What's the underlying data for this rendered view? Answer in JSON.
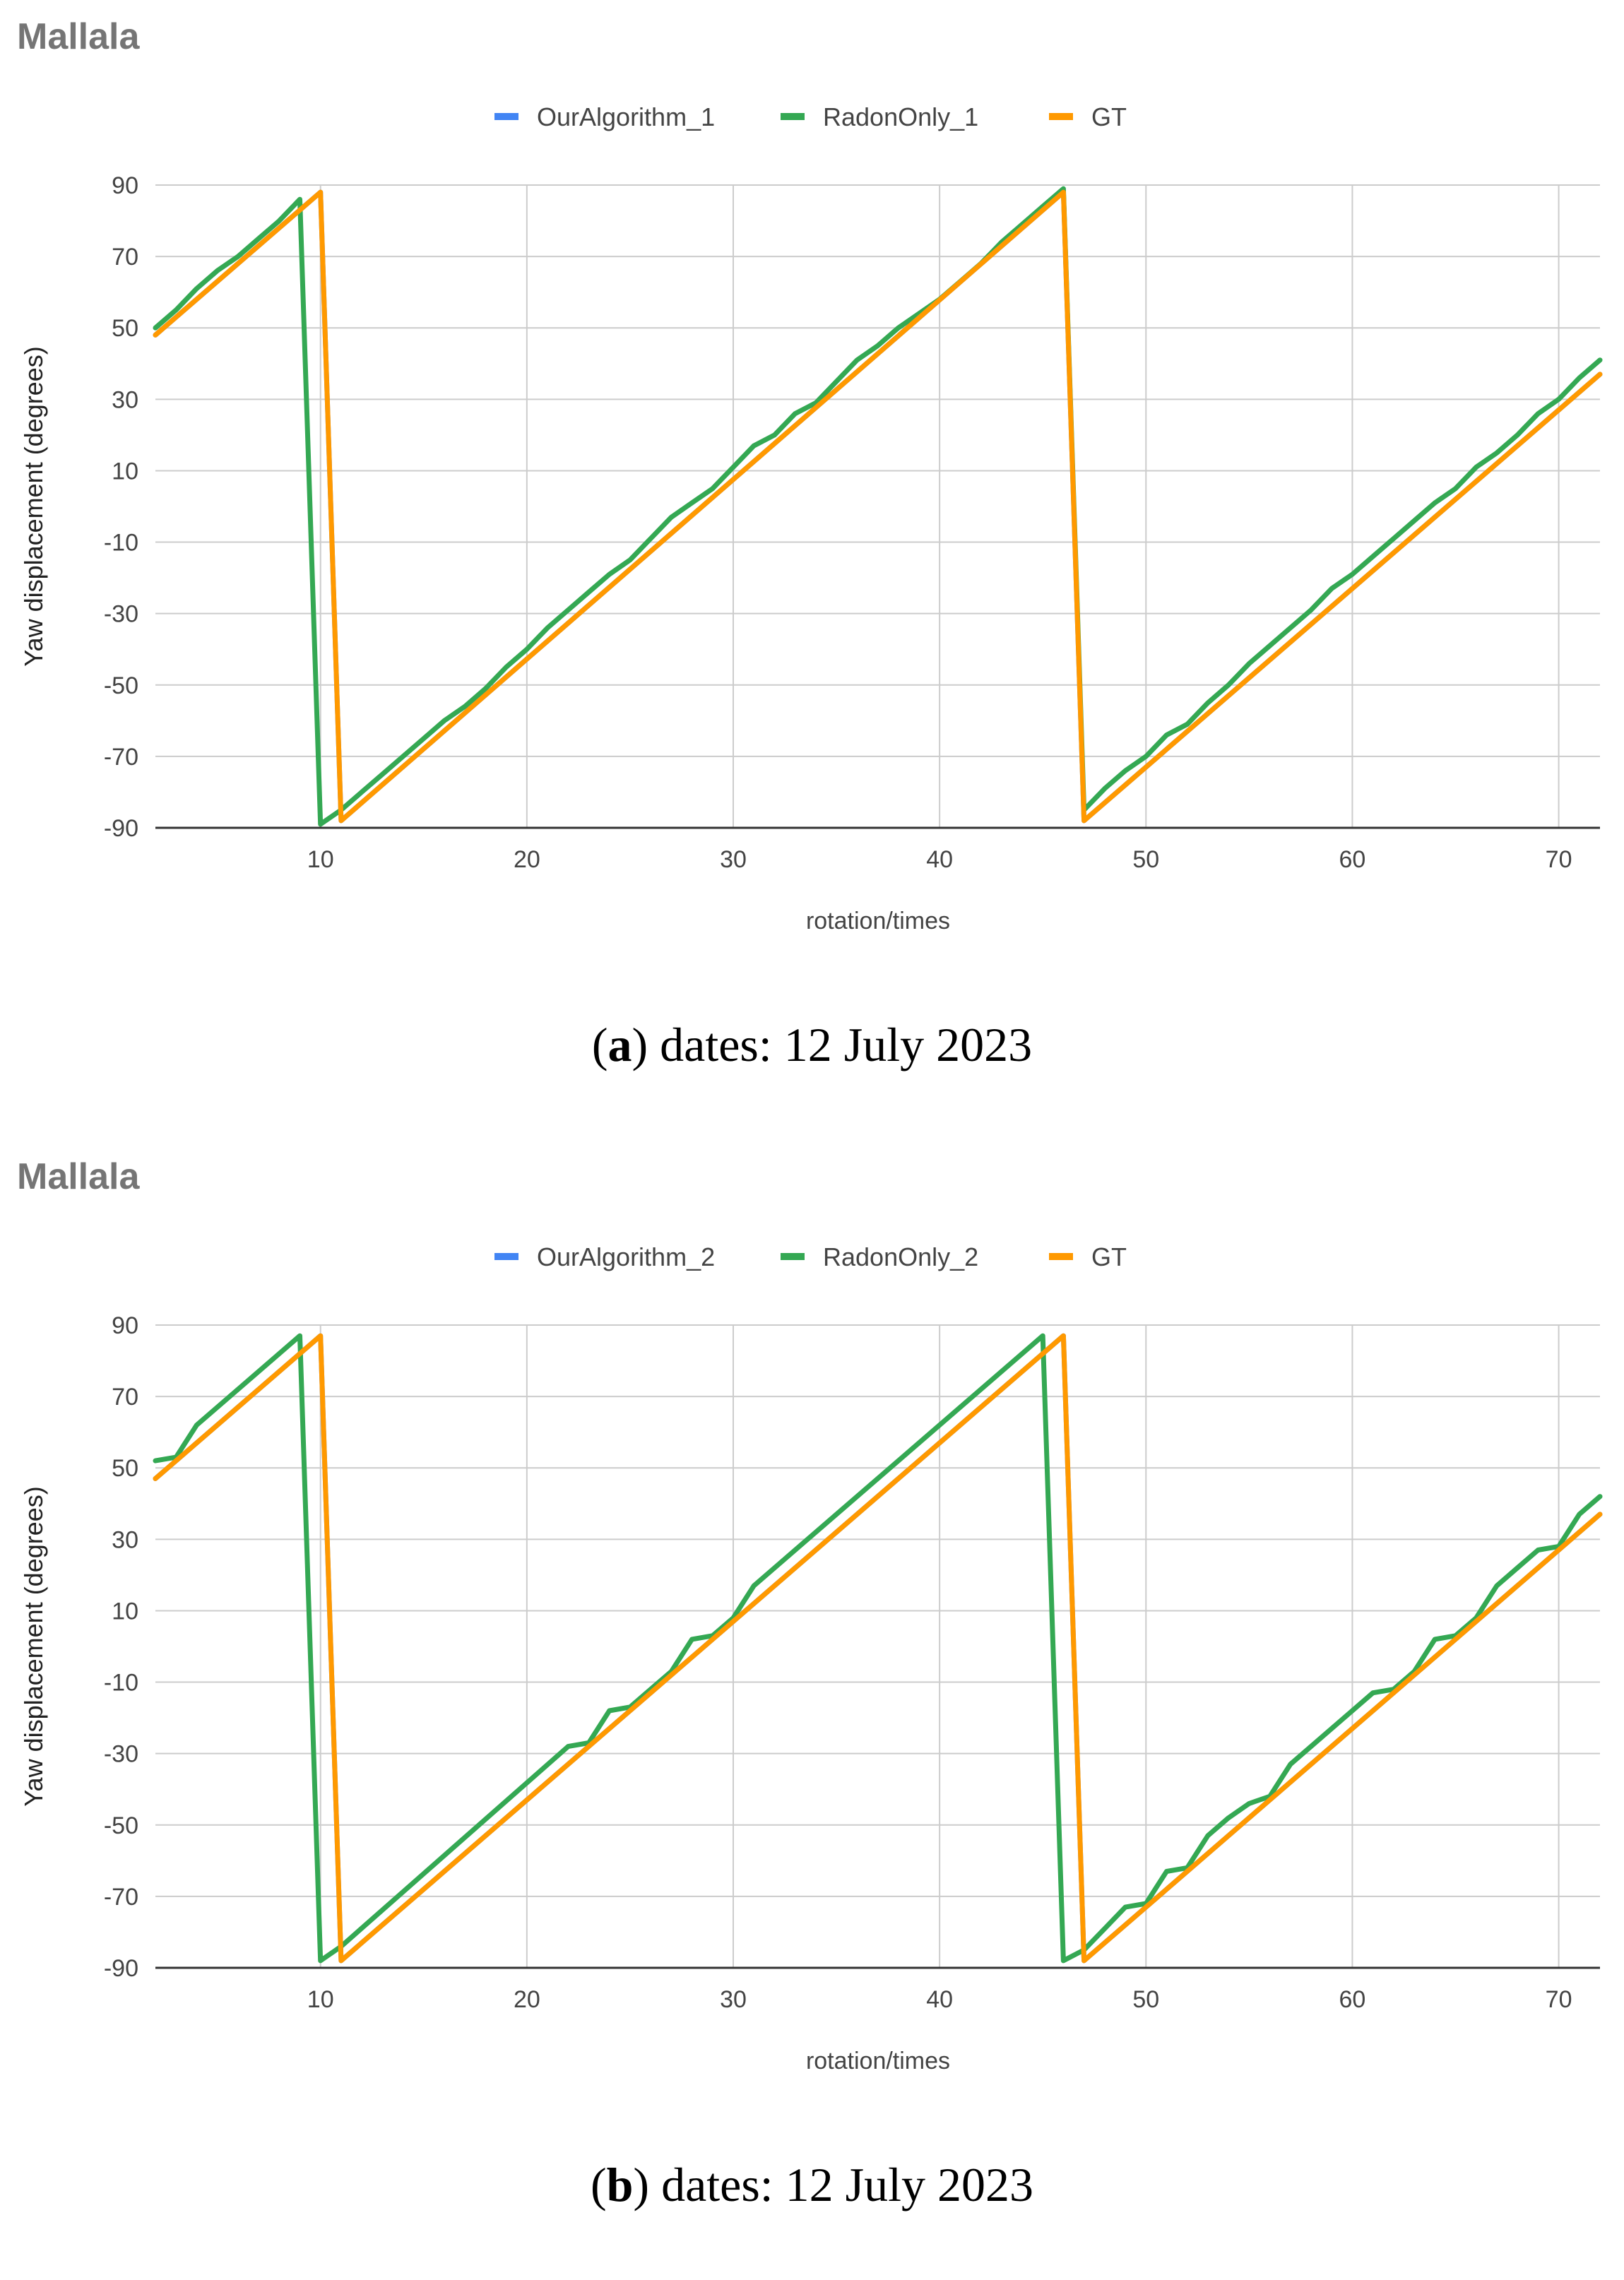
{
  "colors": {
    "OurAlgorithm": "#4285f4",
    "RadonOnly": "#34a853",
    "GT": "#ff9900",
    "grid": "#cccccc",
    "axis": "#333333"
  },
  "chart_data": [
    {
      "type": "line",
      "title": "Mallala",
      "caption_label": "a",
      "caption_text": ") dates: 12 July 2023",
      "caption_open": "(",
      "xlabel": "rotation/times",
      "ylabel": "Yaw displacement (degrees)",
      "xlim": [
        2,
        72
      ],
      "ylim": [
        -90,
        90
      ],
      "xticks": [
        10,
        20,
        30,
        40,
        50,
        60,
        70
      ],
      "yticks": [
        90,
        70,
        50,
        30,
        10,
        -10,
        -30,
        -50,
        -70,
        -90
      ],
      "grid": true,
      "legend_position": "top-center",
      "series": [
        {
          "name": "OurAlgorithm_1",
          "color_key": "OurAlgorithm",
          "x": [
            2,
            10,
            11,
            46,
            47,
            72
          ],
          "y": [
            48,
            88,
            -88,
            88,
            -88,
            37
          ]
        },
        {
          "name": "RadonOnly_1",
          "color_key": "RadonOnly",
          "x": [
            2,
            3,
            4,
            5,
            6,
            7,
            8,
            9,
            10,
            11,
            12,
            13,
            14,
            15,
            16,
            17,
            18,
            19,
            20,
            21,
            22,
            23,
            24,
            25,
            26,
            27,
            28,
            29,
            30,
            31,
            32,
            33,
            34,
            35,
            36,
            37,
            38,
            39,
            40,
            41,
            42,
            43,
            44,
            45,
            46,
            47,
            48,
            49,
            50,
            51,
            52,
            53,
            54,
            55,
            56,
            57,
            58,
            59,
            60,
            61,
            62,
            63,
            64,
            65,
            66,
            67,
            68,
            69,
            70,
            71,
            72
          ],
          "y": [
            50,
            55,
            61,
            66,
            70,
            75,
            80,
            86,
            -89,
            -85,
            -80,
            -75,
            -70,
            -65,
            -60,
            -56,
            -51,
            -45,
            -40,
            -34,
            -29,
            -24,
            -19,
            -15,
            -9,
            -3,
            1,
            5,
            11,
            17,
            20,
            26,
            29,
            35,
            41,
            45,
            50,
            54,
            58,
            63,
            68,
            74,
            79,
            84,
            89,
            -85,
            -79,
            -74,
            -70,
            -64,
            -61,
            -55,
            -50,
            -44,
            -39,
            -34,
            -29,
            -23,
            -19,
            -14,
            -9,
            -4,
            1,
            5,
            11,
            15,
            20,
            26,
            30,
            36,
            41
          ]
        },
        {
          "name": "GT",
          "color_key": "GT",
          "x": [
            2,
            10,
            11,
            46,
            47,
            72
          ],
          "y": [
            48,
            88,
            -88,
            88,
            -88,
            37
          ]
        }
      ]
    },
    {
      "type": "line",
      "title": "Mallala",
      "caption_label": "b",
      "caption_text": ") dates: 12 July 2023",
      "caption_open": "(",
      "xlabel": "rotation/times",
      "ylabel": "Yaw displacement (degrees)",
      "xlim": [
        2,
        72
      ],
      "ylim": [
        -90,
        90
      ],
      "xticks": [
        10,
        20,
        30,
        40,
        50,
        60,
        70
      ],
      "yticks": [
        90,
        70,
        50,
        30,
        10,
        -10,
        -30,
        -50,
        -70,
        -90
      ],
      "grid": true,
      "legend_position": "top-center",
      "series": [
        {
          "name": "OurAlgorithm_2",
          "color_key": "OurAlgorithm",
          "x": [
            2,
            10,
            11,
            46,
            47,
            72
          ],
          "y": [
            47,
            87,
            -88,
            87,
            -88,
            37
          ]
        },
        {
          "name": "RadonOnly_2",
          "color_key": "RadonOnly",
          "x": [
            2,
            3,
            4,
            9,
            10,
            11,
            22,
            23,
            24,
            25,
            26,
            27,
            28,
            29,
            30,
            31,
            45,
            46,
            47,
            48,
            49,
            50,
            51,
            52,
            53,
            54,
            55,
            56,
            57,
            61,
            62,
            63,
            64,
            65,
            66,
            67,
            68,
            69,
            70,
            71,
            72
          ],
          "y": [
            52,
            53,
            62,
            87,
            -88,
            -84,
            -28,
            -27,
            -18,
            -17,
            -12,
            -7,
            2,
            3,
            8,
            17,
            87,
            -88,
            -85,
            -79,
            -73,
            -72,
            -63,
            -62,
            -53,
            -48,
            -44,
            -42,
            -33,
            -13,
            -12,
            -7,
            2,
            3,
            8,
            17,
            22,
            27,
            28,
            37,
            42
          ]
        },
        {
          "name": "GT",
          "color_key": "GT",
          "x": [
            2,
            10,
            11,
            46,
            47,
            72
          ],
          "y": [
            47,
            87,
            -88,
            87,
            -88,
            37
          ]
        }
      ]
    }
  ]
}
